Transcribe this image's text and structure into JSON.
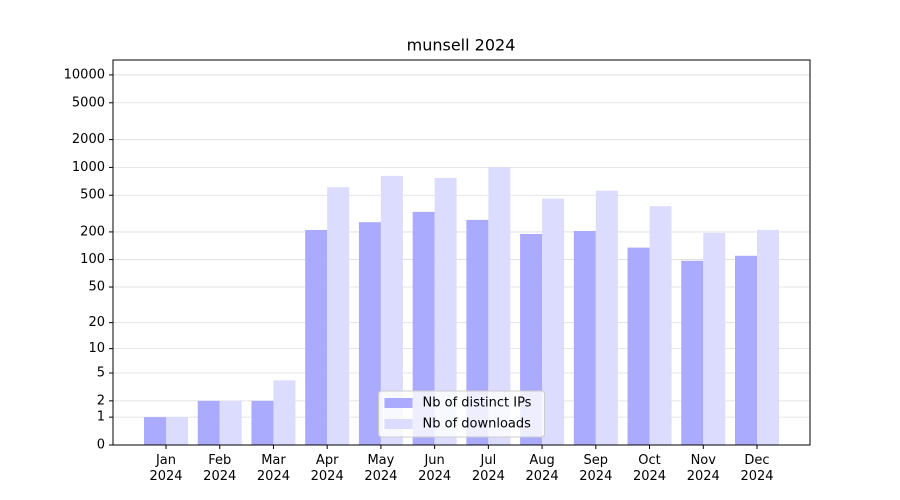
{
  "chart_data": {
    "type": "bar",
    "title": "munsell 2024",
    "categories": [
      "Jan\n2024",
      "Feb\n2024",
      "Mar\n2024",
      "Apr\n2024",
      "May\n2024",
      "Jun\n2024",
      "Jul\n2024",
      "Aug\n2024",
      "Sep\n2024",
      "Oct\n2024",
      "Nov\n2024",
      "Dec\n2024"
    ],
    "series": [
      {
        "name": "Nb of distinct IPs",
        "color": "#aaaaff",
        "values": [
          1,
          2,
          2,
          210,
          255,
          330,
          270,
          190,
          205,
          135,
          97,
          110
        ]
      },
      {
        "name": "Nb of downloads",
        "color": "#dcdcff",
        "values": [
          1,
          2,
          4,
          610,
          810,
          770,
          1000,
          460,
          560,
          380,
          195,
          210
        ]
      }
    ],
    "yscale": "log1p",
    "ylim": [
      0,
      14500
    ],
    "yticks": [
      0,
      1,
      2,
      5,
      10,
      20,
      50,
      100,
      200,
      500,
      1000,
      2000,
      5000,
      10000
    ],
    "grid": true,
    "legend": "lower center"
  }
}
